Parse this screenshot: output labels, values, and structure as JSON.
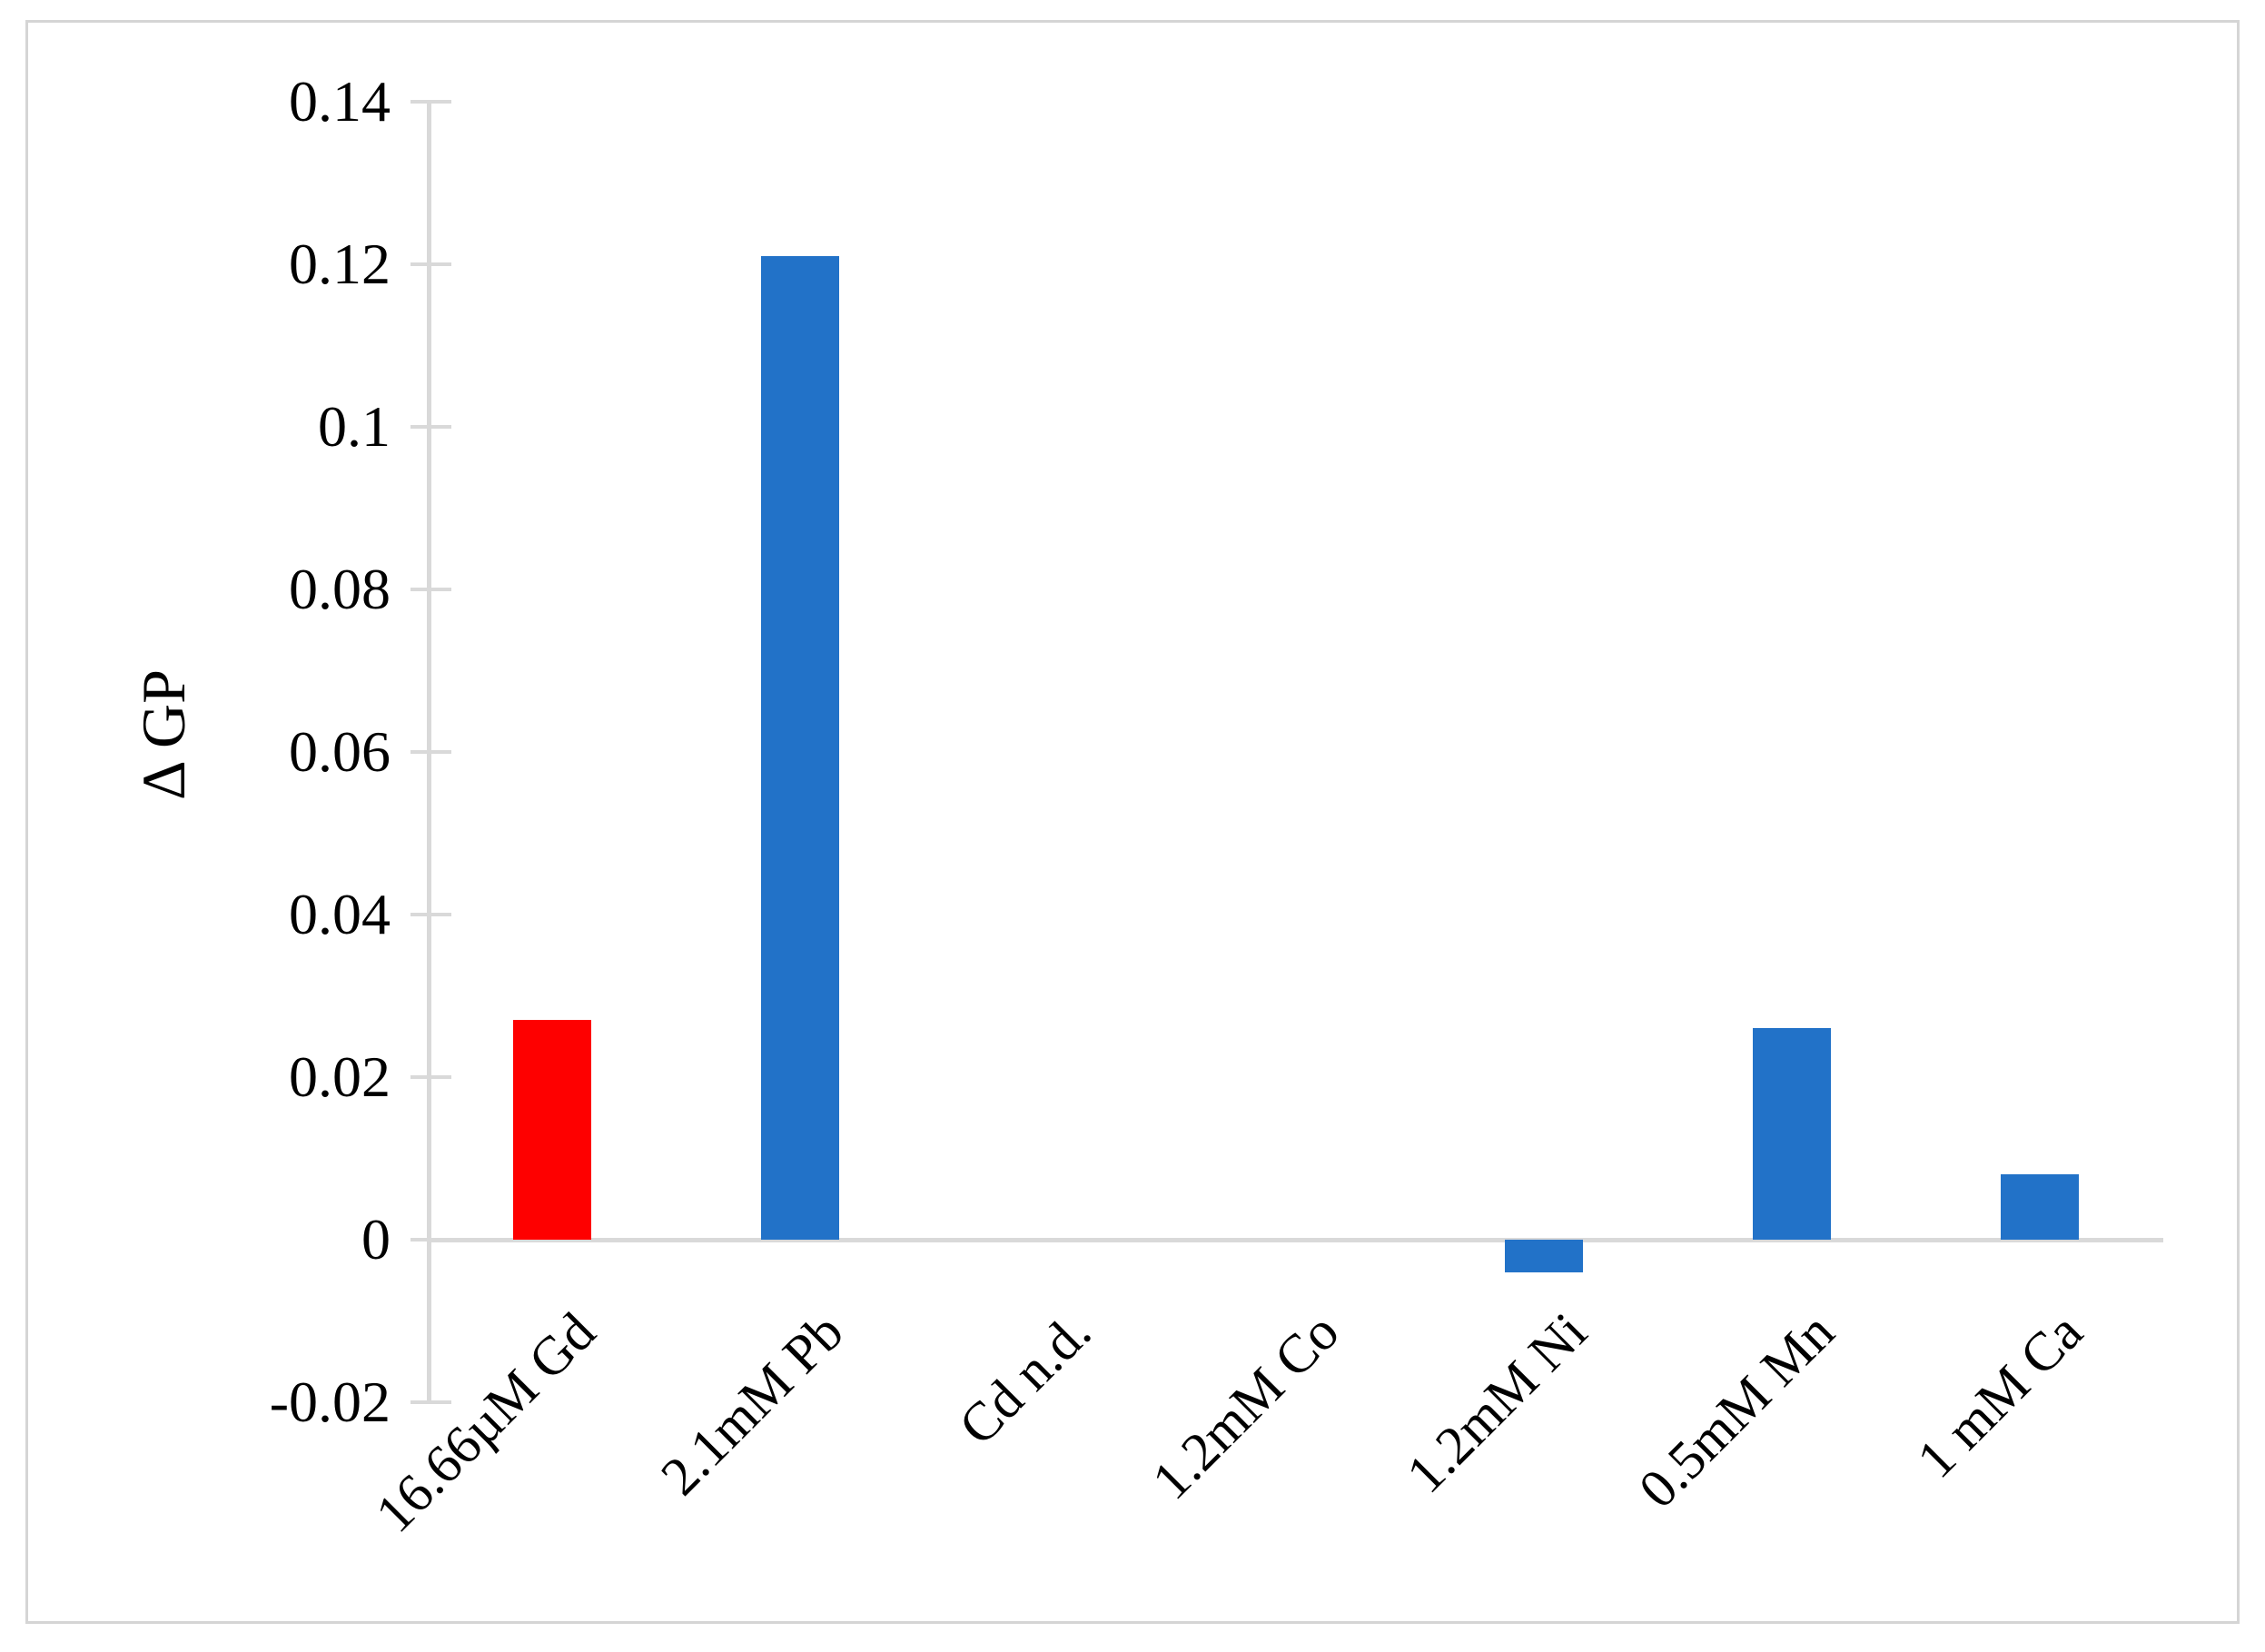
{
  "figure": {
    "background_color": "#ffffff",
    "border_color": "#d5d5d5",
    "axis_color": "#d9d9d9"
  },
  "chart_data": {
    "type": "bar",
    "title": "",
    "xlabel": "",
    "ylabel": "Δ GP",
    "categories": [
      "16.66µM Gd",
      "2.1mM Pb",
      "Cd n.d.",
      "1.2mM Co",
      "1.2mM Ni",
      "0.5mM Mn",
      "1 mM Ca"
    ],
    "values": [
      0.027,
      0.121,
      0,
      0,
      -0.004,
      0.026,
      0.008
    ],
    "bar_colors": [
      "#fe0000",
      "#2272c8",
      "#2272c8",
      "#2272c8",
      "#2272c8",
      "#2272c8",
      "#2272c8"
    ],
    "series_note_colors": {
      "highlight_red": "#fe0000",
      "default_blue": "#2272c8"
    },
    "ylim": [
      -0.02,
      0.14
    ],
    "ytick_interval": 0.02,
    "ytick_labels": [
      "0.14",
      "0.12",
      "0.1",
      "0.08",
      "0.06",
      "0.04",
      "0.02",
      "0",
      "-0.02"
    ],
    "xtick_label_rotation_deg": -45,
    "grid": "zero-baseline-only",
    "legend": "none"
  }
}
